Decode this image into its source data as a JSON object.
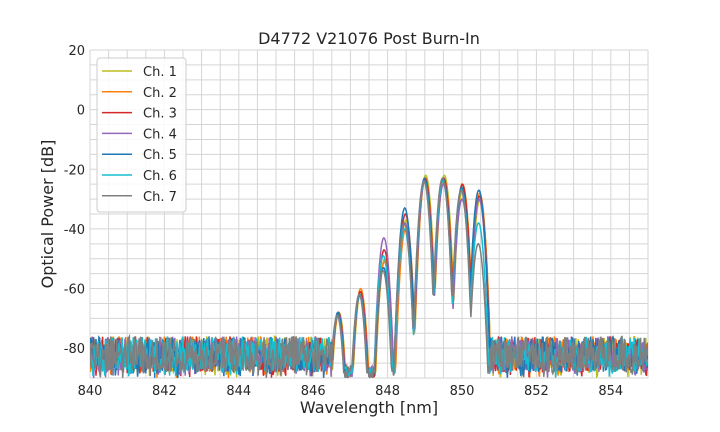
{
  "chart_data": {
    "type": "line",
    "title": "D4772 V21076 Post Burn-In",
    "xlabel": "Wavelength [nm]",
    "ylabel": "Optical Power [dB]",
    "xlim": [
      840,
      855
    ],
    "ylim": [
      -90,
      20
    ],
    "xticks": [
      840,
      842,
      844,
      846,
      848,
      850,
      852,
      854
    ],
    "yticks": [
      20,
      0,
      -20,
      -40,
      -60,
      -80
    ],
    "grid": true,
    "legend": "top-left",
    "noise_floor_db": [
      -90,
      -72
    ],
    "signal_band_nm": [
      846.5,
      850.75
    ],
    "peak_wavelengths_nm": [
      846.67,
      847.26,
      847.9,
      848.47,
      849.0,
      849.5,
      850.0,
      850.46
    ],
    "series": [
      {
        "name": "Ch. 1",
        "color": "#bcbd22",
        "peaks_db": [
          -68,
          -61,
          -50,
          -37,
          -22,
          -22,
          -26,
          -30
        ]
      },
      {
        "name": "Ch. 2",
        "color": "#ff7f0e",
        "peaks_db": [
          -68,
          -60,
          -51,
          -40,
          -23,
          -23,
          -25,
          -28
        ]
      },
      {
        "name": "Ch. 3",
        "color": "#d62728",
        "peaks_db": [
          -68,
          -61,
          -47,
          -35,
          -23,
          -23,
          -25,
          -29
        ]
      },
      {
        "name": "Ch. 4",
        "color": "#9467bd",
        "peaks_db": [
          -68,
          -62,
          -43,
          -38,
          -24,
          -25,
          -30,
          -30
        ]
      },
      {
        "name": "Ch. 5",
        "color": "#1f77b4",
        "peaks_db": [
          -68,
          -62,
          -53,
          -33,
          -23,
          -23,
          -26,
          -27
        ]
      },
      {
        "name": "Ch. 6",
        "color": "#17becf",
        "peaks_db": [
          -69,
          -62,
          -49,
          -40,
          -24,
          -24,
          -27,
          -38
        ]
      },
      {
        "name": "Ch. 7",
        "color": "#7f7f7f",
        "peaks_db": [
          -69,
          -62,
          -54,
          -38,
          -24,
          -23,
          -27,
          -45
        ]
      }
    ]
  }
}
